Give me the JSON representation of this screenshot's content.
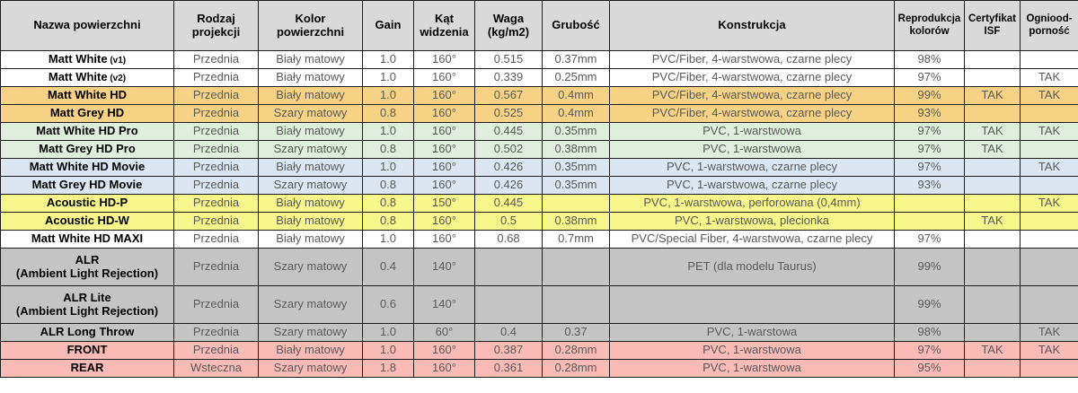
{
  "palette": {
    "header_bg": "#d9d9d9",
    "row_white": "#ffffff",
    "row_orange": "#f8d284",
    "row_green": "#dfeedd",
    "row_blue": "#dbe6f2",
    "row_yellow": "#f7f68a",
    "row_gray": "#c4c4c4",
    "row_pink": "#fabab6",
    "border": "#1c1c1c",
    "text": "#5a5a5a",
    "text_strong": "#000000"
  },
  "table": {
    "columns": [
      {
        "key": "name",
        "label": "Nazwa powierzchni",
        "small": false
      },
      {
        "key": "projection",
        "label": "Rodzaj\nprojekcji",
        "small": false
      },
      {
        "key": "color",
        "label": "Kolor\npowierzchni",
        "small": false
      },
      {
        "key": "gain",
        "label": "Gain",
        "small": false
      },
      {
        "key": "angle",
        "label": "Kąt\nwidzenia",
        "small": false
      },
      {
        "key": "weight",
        "label": "Waga\n(kg/m2)",
        "small": false
      },
      {
        "key": "thickness",
        "label": "Grubość",
        "small": false
      },
      {
        "key": "construction",
        "label": "Konstrukcja",
        "small": false
      },
      {
        "key": "color_reproduction",
        "label": "Reprodukcja\nkolorów",
        "small": true
      },
      {
        "key": "isf",
        "label": "Certyfikat\nISF",
        "small": true
      },
      {
        "key": "fire",
        "label": "Ogniood-\nporność",
        "small": true
      }
    ],
    "rows": [
      {
        "name": "Matt White",
        "name_suffix": "(v1)",
        "name_line2": "",
        "projection": "Przednia",
        "color": "Biały matowy",
        "gain": "1.0",
        "angle": "160°",
        "weight": "0.515",
        "thickness": "0.37mm",
        "construction": "PVC/Fiber, 4-warstwowa, czarne plecy",
        "color_reproduction": "98%",
        "isf": "",
        "fire": "",
        "bg": "row_white"
      },
      {
        "name": "Matt White",
        "name_suffix": "(v2)",
        "name_line2": "",
        "projection": "Przednia",
        "color": "Biały matowy",
        "gain": "1.0",
        "angle": "160°",
        "weight": "0.339",
        "thickness": "0.25mm",
        "construction": "PVC/Fiber, 4-warstwowa, czarne plecy",
        "color_reproduction": "97%",
        "isf": "",
        "fire": "TAK",
        "bg": "row_white"
      },
      {
        "name": "Matt White HD",
        "name_suffix": "",
        "name_line2": "",
        "projection": "Przednia",
        "color": "Biały matowy",
        "gain": "1.0",
        "angle": "160°",
        "weight": "0.567",
        "thickness": "0.4mm",
        "construction": "PVC/Fiber, 4-warstwowa, czarne plecy",
        "color_reproduction": "99%",
        "isf": "TAK",
        "fire": "TAK",
        "bg": "row_orange"
      },
      {
        "name": "Matt Grey HD",
        "name_suffix": "",
        "name_line2": "",
        "projection": "Przednia",
        "color": "Szary matowy",
        "gain": "0.8",
        "angle": "160°",
        "weight": "0.525",
        "thickness": "0.4mm",
        "construction": "PVC/Fiber, 4-warstwowa, czarne plecy",
        "color_reproduction": "93%",
        "isf": "",
        "fire": "",
        "bg": "row_orange"
      },
      {
        "name": "Matt White HD Pro",
        "name_suffix": "",
        "name_line2": "",
        "projection": "Przednia",
        "color": "Biały matowy",
        "gain": "1.0",
        "angle": "160°",
        "weight": "0.445",
        "thickness": "0.35mm",
        "construction": "PVC, 1-warstwowa",
        "color_reproduction": "97%",
        "isf": "TAK",
        "fire": "TAK",
        "bg": "row_green"
      },
      {
        "name": "Matt Grey HD Pro",
        "name_suffix": "",
        "name_line2": "",
        "projection": "Przednia",
        "color": "Szary matowy",
        "gain": "0.8",
        "angle": "160°",
        "weight": "0.502",
        "thickness": "0.38mm",
        "construction": "PVC, 1-warstwowa",
        "color_reproduction": "97%",
        "isf": "TAK",
        "fire": "",
        "bg": "row_green"
      },
      {
        "name": "Matt White HD Movie",
        "name_suffix": "",
        "name_line2": "",
        "projection": "Przednia",
        "color": "Biały matowy",
        "gain": "1.0",
        "angle": "160°",
        "weight": "0.426",
        "thickness": "0.35mm",
        "construction": "PVC, 1-warstwowa, czarne plecy",
        "color_reproduction": "97%",
        "isf": "",
        "fire": "TAK",
        "bg": "row_blue"
      },
      {
        "name": "Matt Grey HD Movie",
        "name_suffix": "",
        "name_line2": "",
        "projection": "Przednia",
        "color": "Szary matowy",
        "gain": "0.8",
        "angle": "160°",
        "weight": "0.426",
        "thickness": "0.35mm",
        "construction": "PVC, 1-warstwowa, czarne plecy",
        "color_reproduction": "93%",
        "isf": "",
        "fire": "",
        "bg": "row_blue"
      },
      {
        "name": "Acoustic HD-P",
        "name_suffix": "",
        "name_line2": "",
        "projection": "Przednia",
        "color": "Biały matowy",
        "gain": "0.8",
        "angle": "150°",
        "weight": "0.445",
        "thickness": "",
        "construction": "PVC, 1-warstwowa, perforowana (0,4mm)",
        "color_reproduction": "",
        "isf": "",
        "fire": "TAK",
        "bg": "row_yellow"
      },
      {
        "name": "Acoustic HD-W",
        "name_suffix": "",
        "name_line2": "",
        "projection": "Przednia",
        "color": "Biały matowy",
        "gain": "0.8",
        "angle": "160°",
        "weight": "0.5",
        "thickness": "0.38mm",
        "construction": "PVC, 1-warstwowa, plecionka",
        "color_reproduction": "",
        "isf": "TAK",
        "fire": "",
        "bg": "row_yellow"
      },
      {
        "name": "Matt White HD MAXI",
        "name_suffix": "",
        "name_line2": "",
        "projection": "Przednia",
        "color": "Biały matowy",
        "gain": "1.0",
        "angle": "160°",
        "weight": "0.68",
        "thickness": "0.7mm",
        "construction": "PVC/Special Fiber, 4-warstwowa, czarne plecy",
        "color_reproduction": "97%",
        "isf": "",
        "fire": "",
        "bg": "row_white"
      },
      {
        "name": "ALR",
        "name_suffix": "",
        "name_line2": "(Ambient Light Rejection)",
        "projection": "Przednia",
        "color": "Szary matowy",
        "gain": "0.4",
        "angle": "140°",
        "weight": "",
        "thickness": "",
        "construction": "PET (dla modelu Taurus)",
        "color_reproduction": "99%",
        "isf": "",
        "fire": "",
        "bg": "row_gray"
      },
      {
        "name": "ALR Lite",
        "name_suffix": "",
        "name_line2": "(Ambient Light Rejection)",
        "projection": "Przednia",
        "color": "Szary matowy",
        "gain": "0.6",
        "angle": "140°",
        "weight": "",
        "thickness": "",
        "construction": "",
        "color_reproduction": "99%",
        "isf": "",
        "fire": "",
        "bg": "row_gray"
      },
      {
        "name": "ALR Long Throw",
        "name_suffix": "",
        "name_line2": "",
        "projection": "Przednia",
        "color": "Szary matowy",
        "gain": "1.0",
        "angle": "60°",
        "weight": "0.4",
        "thickness": "0.37",
        "construction": "PVC, 1-warstowa",
        "color_reproduction": "98%",
        "isf": "",
        "fire": "TAK",
        "bg": "row_gray"
      },
      {
        "name": "FRONT",
        "name_suffix": "",
        "name_line2": "",
        "projection": "Przednia",
        "color": "Biały matowy",
        "gain": "1.0",
        "angle": "160°",
        "weight": "0.387",
        "thickness": "0.28mm",
        "construction": "PVC, 1-warstwowa",
        "color_reproduction": "97%",
        "isf": "TAK",
        "fire": "TAK",
        "bg": "row_pink"
      },
      {
        "name": "REAR",
        "name_suffix": "",
        "name_line2": "",
        "projection": "Wsteczna",
        "color": "Szary matowy",
        "gain": "1.8",
        "angle": "160°",
        "weight": "0.361",
        "thickness": "0.28mm",
        "construction": "PVC, 1-warstwowa",
        "color_reproduction": "95%",
        "isf": "",
        "fire": "",
        "bg": "row_pink"
      }
    ]
  }
}
